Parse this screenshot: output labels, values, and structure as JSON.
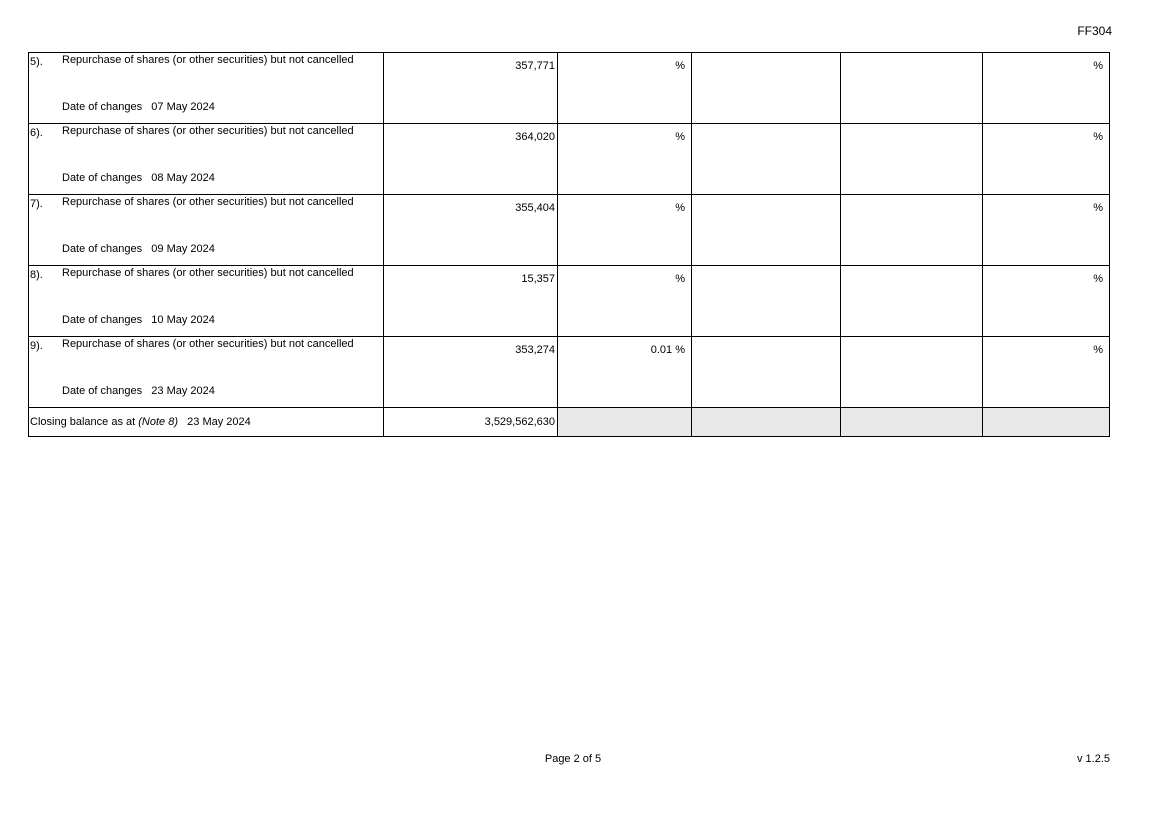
{
  "form_code": "FF304",
  "rows": [
    {
      "index": "5).",
      "description": "Repurchase of shares (or other securities) but not cancelled",
      "date_label": "Date of changes",
      "date": "07 May 2024",
      "shares": "357,771",
      "pct1": "%",
      "pct2": "%"
    },
    {
      "index": "6).",
      "description": "Repurchase of shares (or other securities) but not cancelled",
      "date_label": "Date of changes",
      "date": "08 May 2024",
      "shares": "364,020",
      "pct1": "%",
      "pct2": "%"
    },
    {
      "index": "7).",
      "description": "Repurchase of shares (or other securities) but not cancelled",
      "date_label": "Date of changes",
      "date": "09 May 2024",
      "shares": "355,404",
      "pct1": "%",
      "pct2": "%"
    },
    {
      "index": "8).",
      "description": "Repurchase of shares (or other securities) but not cancelled",
      "date_label": "Date of changes",
      "date": "10 May 2024",
      "shares": "15,357",
      "pct1": "%",
      "pct2": "%"
    },
    {
      "index": "9).",
      "description": "Repurchase of shares (or other securities) but not cancelled",
      "date_label": "Date of changes",
      "date": "23 May 2024",
      "shares": "353,274",
      "pct1": "0.01 %",
      "pct2": "%"
    }
  ],
  "closing": {
    "label": "Closing balance as at",
    "note": "(Note 8)",
    "date": "23 May 2024",
    "shares": "3,529,562,630"
  },
  "footer": {
    "page": "Page 2 of 5",
    "version": "v 1.2.5"
  }
}
